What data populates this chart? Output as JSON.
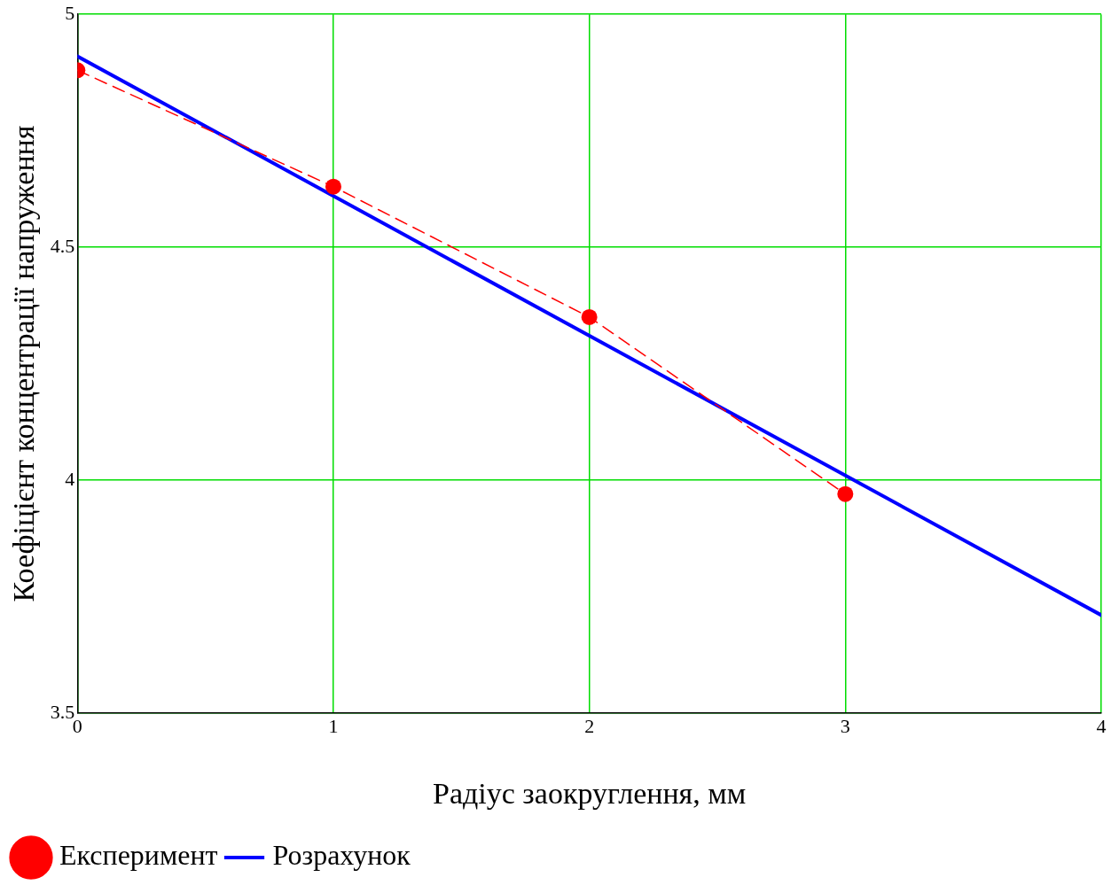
{
  "chart_data": {
    "type": "line",
    "xlabel": "Радіус заокруглення, мм",
    "ylabel": "Коефіцієнт концентрації напруження",
    "xlim": [
      0,
      4
    ],
    "xticks": [
      0,
      1,
      2,
      3,
      4
    ],
    "ylim": [
      3.5,
      5
    ],
    "yticks": [
      3.5,
      4,
      4.5,
      5
    ],
    "grid": true,
    "legend": "bottom left",
    "series": [
      {
        "name": "Експеримент",
        "color": "#ff0000",
        "x": [
          0,
          1,
          2,
          3
        ],
        "values": [
          4.88,
          4.63,
          4.35,
          3.97
        ],
        "marker": "circle",
        "line_style": "dashed"
      },
      {
        "name": "Розрахунок",
        "color": "#0000ff",
        "x": [
          0,
          4
        ],
        "values": [
          4.91,
          3.71
        ],
        "marker": "none",
        "line_style": "solid"
      }
    ]
  }
}
